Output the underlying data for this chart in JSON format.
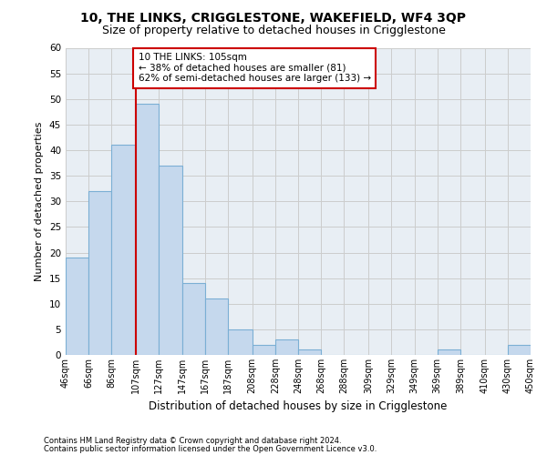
{
  "title": "10, THE LINKS, CRIGGLESTONE, WAKEFIELD, WF4 3QP",
  "subtitle": "Size of property relative to detached houses in Crigglestone",
  "xlabel": "Distribution of detached houses by size in Crigglestone",
  "ylabel": "Number of detached properties",
  "footer1": "Contains HM Land Registry data © Crown copyright and database right 2024.",
  "footer2": "Contains public sector information licensed under the Open Government Licence v3.0.",
  "bin_labels": [
    "46sqm",
    "66sqm",
    "86sqm",
    "107sqm",
    "127sqm",
    "147sqm",
    "167sqm",
    "187sqm",
    "208sqm",
    "228sqm",
    "248sqm",
    "268sqm",
    "288sqm",
    "309sqm",
    "329sqm",
    "349sqm",
    "369sqm",
    "389sqm",
    "410sqm",
    "430sqm",
    "450sqm"
  ],
  "bar_values": [
    19,
    32,
    41,
    49,
    37,
    14,
    11,
    5,
    2,
    3,
    1,
    0,
    0,
    0,
    0,
    0,
    1,
    0,
    0,
    2,
    0
  ],
  "bar_color": "#c5d8ed",
  "bar_edge_color": "#7bafd4",
  "vline_x_index": 3,
  "vline_color": "#cc0000",
  "annotation_text": "10 THE LINKS: 105sqm\n← 38% of detached houses are smaller (81)\n62% of semi-detached houses are larger (133) →",
  "annotation_box_color": "white",
  "annotation_box_edge_color": "#cc0000",
  "ylim": [
    0,
    60
  ],
  "yticks": [
    0,
    5,
    10,
    15,
    20,
    25,
    30,
    35,
    40,
    45,
    50,
    55,
    60
  ],
  "grid_color": "#cccccc",
  "bg_color": "#e8eef4",
  "title_fontsize": 10,
  "subtitle_fontsize": 9,
  "xlabel_fontsize": 8.5,
  "ylabel_fontsize": 8,
  "bin_edges": [
    46,
    66,
    86,
    107,
    127,
    147,
    167,
    187,
    208,
    228,
    248,
    268,
    288,
    309,
    329,
    349,
    369,
    389,
    410,
    430,
    450
  ]
}
